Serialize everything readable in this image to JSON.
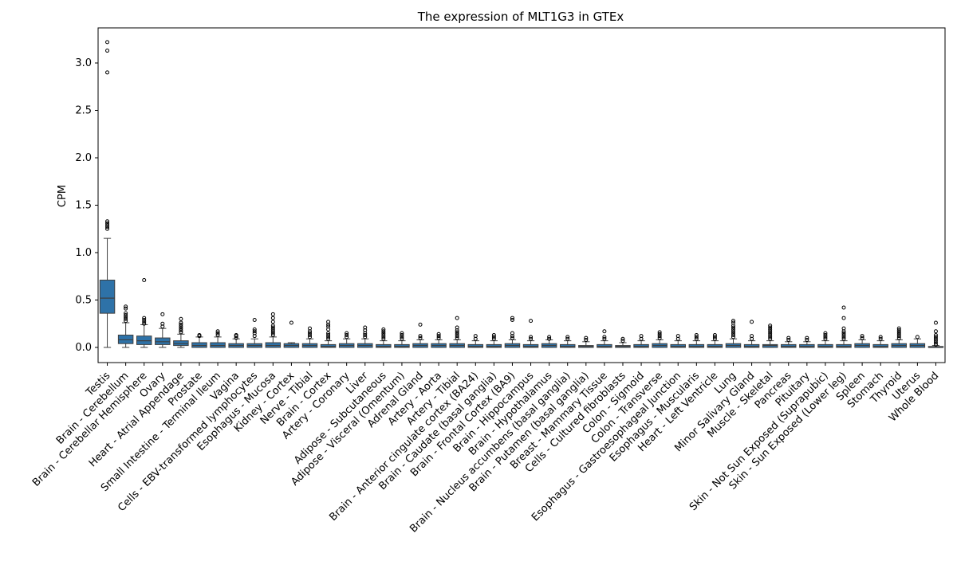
{
  "chart_data": {
    "type": "box",
    "title": "The expression of MLT1G3 in GTEx",
    "xlabel": "",
    "ylabel": "CPM",
    "ylim": [
      -0.16,
      3.37
    ],
    "yticks": [
      0.0,
      0.5,
      1.0,
      1.5,
      2.0,
      2.5,
      3.0
    ],
    "ytick_labels": [
      "0.0",
      "0.5",
      "1.0",
      "1.5",
      "2.0",
      "2.5",
      "3.0"
    ],
    "grid": false,
    "legend": "none",
    "box_color": "#2e72a8",
    "categories": [
      "Testis",
      "Brain - Cerebellum",
      "Brain - Cerebellar Hemisphere",
      "Ovary",
      "Heart - Atrial Appendage",
      "Prostate",
      "Small Intestine - Terminal Ileum",
      "Vagina",
      "Cells - EBV-transformed lymphocytes",
      "Esophagus - Mucosa",
      "Kidney - Cortex",
      "Nerve - Tibial",
      "Brain - Cortex",
      "Artery - Coronary",
      "Liver",
      "Adipose - Subcutaneous",
      "Adipose - Visceral (Omentum)",
      "Adrenal Gland",
      "Artery - Aorta",
      "Artery - Tibial",
      "Brain - Anterior cingulate cortex (BA24)",
      "Brain - Caudate (basal ganglia)",
      "Brain - Frontal Cortex (BA9)",
      "Brain - Hippocampus",
      "Brain - Hypothalamus",
      "Brain - Nucleus accumbens (basal ganglia)",
      "Brain - Putamen (basal ganglia)",
      "Breast - Mammary Tissue",
      "Cells - Cultured fibroblasts",
      "Colon - Sigmoid",
      "Colon - Transverse",
      "Esophagus - Gastroesophageal Junction",
      "Esophagus - Muscularis",
      "Heart - Left Ventricle",
      "Lung",
      "Minor Salivary Gland",
      "Muscle - Skeletal",
      "Pancreas",
      "Pituitary",
      "Skin - Not Sun Exposed (Suprapubic)",
      "Skin - Sun Exposed (Lower leg)",
      "Spleen",
      "Stomach",
      "Thyroid",
      "Uterus",
      "Whole Blood"
    ],
    "boxes": [
      {
        "q1": 0.36,
        "median": 0.52,
        "q3": 0.71,
        "whislo": 0.0,
        "whishi": 1.15,
        "fliers": [
          1.25,
          1.27,
          1.29,
          1.31,
          1.33,
          2.9,
          3.13,
          3.22
        ]
      },
      {
        "q1": 0.04,
        "median": 0.08,
        "q3": 0.13,
        "whislo": 0.0,
        "whishi": 0.26,
        "fliers": [
          0.28,
          0.3,
          0.32,
          0.34,
          0.36,
          0.41,
          0.43
        ]
      },
      {
        "q1": 0.03,
        "median": 0.07,
        "q3": 0.12,
        "whislo": 0.0,
        "whishi": 0.24,
        "fliers": [
          0.25,
          0.27,
          0.29,
          0.31,
          0.71
        ]
      },
      {
        "q1": 0.03,
        "median": 0.06,
        "q3": 0.1,
        "whislo": 0.0,
        "whishi": 0.2,
        "fliers": [
          0.22,
          0.25,
          0.35
        ]
      },
      {
        "q1": 0.02,
        "median": 0.04,
        "q3": 0.07,
        "whislo": 0.0,
        "whishi": 0.14,
        "fliers": [
          0.16,
          0.18,
          0.2,
          0.22,
          0.24,
          0.26,
          0.3
        ]
      },
      {
        "q1": 0.0,
        "median": 0.02,
        "q3": 0.05,
        "whislo": 0.0,
        "whishi": 0.11,
        "fliers": [
          0.12,
          0.13
        ]
      },
      {
        "q1": 0.0,
        "median": 0.02,
        "q3": 0.05,
        "whislo": 0.0,
        "whishi": 0.11,
        "fliers": [
          0.13,
          0.15,
          0.17
        ]
      },
      {
        "q1": 0.0,
        "median": 0.02,
        "q3": 0.04,
        "whislo": 0.0,
        "whishi": 0.09,
        "fliers": [
          0.1,
          0.12,
          0.13
        ]
      },
      {
        "q1": 0.0,
        "median": 0.02,
        "q3": 0.04,
        "whislo": 0.0,
        "whishi": 0.09,
        "fliers": [
          0.12,
          0.15,
          0.17,
          0.19,
          0.29
        ]
      },
      {
        "q1": 0.0,
        "median": 0.02,
        "q3": 0.05,
        "whislo": 0.0,
        "whishi": 0.11,
        "fliers": [
          0.13,
          0.15,
          0.17,
          0.19,
          0.21,
          0.23,
          0.27,
          0.31,
          0.35
        ]
      },
      {
        "q1": 0.0,
        "median": 0.02,
        "q3": 0.04,
        "whislo": 0.0,
        "whishi": 0.05,
        "fliers": [
          0.26
        ]
      },
      {
        "q1": 0.0,
        "median": 0.02,
        "q3": 0.04,
        "whislo": 0.0,
        "whishi": 0.09,
        "fliers": [
          0.11,
          0.13,
          0.15,
          0.17,
          0.2
        ]
      },
      {
        "q1": 0.0,
        "median": 0.01,
        "q3": 0.03,
        "whislo": 0.0,
        "whishi": 0.07,
        "fliers": [
          0.09,
          0.11,
          0.13,
          0.15,
          0.19,
          0.22,
          0.24,
          0.27
        ]
      },
      {
        "q1": 0.0,
        "median": 0.02,
        "q3": 0.04,
        "whislo": 0.0,
        "whishi": 0.09,
        "fliers": [
          0.11,
          0.13,
          0.15
        ]
      },
      {
        "q1": 0.0,
        "median": 0.02,
        "q3": 0.04,
        "whislo": 0.0,
        "whishi": 0.09,
        "fliers": [
          0.11,
          0.13,
          0.15,
          0.18,
          0.21
        ]
      },
      {
        "q1": 0.0,
        "median": 0.01,
        "q3": 0.03,
        "whislo": 0.0,
        "whishi": 0.07,
        "fliers": [
          0.09,
          0.11,
          0.13,
          0.15,
          0.17,
          0.19
        ]
      },
      {
        "q1": 0.0,
        "median": 0.01,
        "q3": 0.03,
        "whislo": 0.0,
        "whishi": 0.07,
        "fliers": [
          0.09,
          0.11,
          0.13,
          0.15
        ]
      },
      {
        "q1": 0.0,
        "median": 0.02,
        "q3": 0.04,
        "whislo": 0.0,
        "whishi": 0.08,
        "fliers": [
          0.1,
          0.12,
          0.24
        ]
      },
      {
        "q1": 0.0,
        "median": 0.02,
        "q3": 0.04,
        "whislo": 0.0,
        "whishi": 0.08,
        "fliers": [
          0.1,
          0.12,
          0.14
        ]
      },
      {
        "q1": 0.0,
        "median": 0.02,
        "q3": 0.04,
        "whislo": 0.0,
        "whishi": 0.08,
        "fliers": [
          0.1,
          0.12,
          0.14,
          0.16,
          0.18,
          0.21,
          0.31
        ]
      },
      {
        "q1": 0.0,
        "median": 0.01,
        "q3": 0.03,
        "whislo": 0.0,
        "whishi": 0.07,
        "fliers": [
          0.09,
          0.12
        ]
      },
      {
        "q1": 0.0,
        "median": 0.01,
        "q3": 0.03,
        "whislo": 0.0,
        "whishi": 0.07,
        "fliers": [
          0.09,
          0.11,
          0.13
        ]
      },
      {
        "q1": 0.0,
        "median": 0.02,
        "q3": 0.04,
        "whislo": 0.0,
        "whishi": 0.08,
        "fliers": [
          0.1,
          0.12,
          0.15,
          0.29,
          0.31
        ]
      },
      {
        "q1": 0.0,
        "median": 0.01,
        "q3": 0.03,
        "whislo": 0.0,
        "whishi": 0.07,
        "fliers": [
          0.09,
          0.11,
          0.28
        ]
      },
      {
        "q1": 0.0,
        "median": 0.02,
        "q3": 0.04,
        "whislo": 0.0,
        "whishi": 0.08,
        "fliers": [
          0.09,
          0.11
        ]
      },
      {
        "q1": 0.0,
        "median": 0.01,
        "q3": 0.03,
        "whislo": 0.0,
        "whishi": 0.07,
        "fliers": [
          0.09,
          0.11
        ]
      },
      {
        "q1": 0.0,
        "median": 0.01,
        "q3": 0.02,
        "whislo": 0.0,
        "whishi": 0.06,
        "fliers": [
          0.08,
          0.1
        ]
      },
      {
        "q1": 0.0,
        "median": 0.01,
        "q3": 0.03,
        "whislo": 0.0,
        "whishi": 0.07,
        "fliers": [
          0.09,
          0.11,
          0.17
        ]
      },
      {
        "q1": 0.0,
        "median": 0.01,
        "q3": 0.02,
        "whislo": 0.0,
        "whishi": 0.05,
        "fliers": [
          0.07,
          0.09
        ]
      },
      {
        "q1": 0.0,
        "median": 0.01,
        "q3": 0.03,
        "whislo": 0.0,
        "whishi": 0.07,
        "fliers": [
          0.09,
          0.12
        ]
      },
      {
        "q1": 0.0,
        "median": 0.02,
        "q3": 0.04,
        "whislo": 0.0,
        "whishi": 0.08,
        "fliers": [
          0.1,
          0.12,
          0.14,
          0.16
        ]
      },
      {
        "q1": 0.0,
        "median": 0.01,
        "q3": 0.03,
        "whislo": 0.0,
        "whishi": 0.07,
        "fliers": [
          0.09,
          0.12
        ]
      },
      {
        "q1": 0.0,
        "median": 0.01,
        "q3": 0.03,
        "whislo": 0.0,
        "whishi": 0.07,
        "fliers": [
          0.09,
          0.11,
          0.13
        ]
      },
      {
        "q1": 0.0,
        "median": 0.01,
        "q3": 0.03,
        "whislo": 0.0,
        "whishi": 0.07,
        "fliers": [
          0.09,
          0.11,
          0.13
        ]
      },
      {
        "q1": 0.0,
        "median": 0.02,
        "q3": 0.04,
        "whislo": 0.0,
        "whishi": 0.09,
        "fliers": [
          0.11,
          0.13,
          0.15,
          0.17,
          0.19,
          0.21,
          0.23,
          0.26,
          0.28
        ]
      },
      {
        "q1": 0.0,
        "median": 0.01,
        "q3": 0.03,
        "whislo": 0.0,
        "whishi": 0.07,
        "fliers": [
          0.09,
          0.12,
          0.27
        ]
      },
      {
        "q1": 0.0,
        "median": 0.02,
        "q3": 0.03,
        "whislo": 0.0,
        "whishi": 0.07,
        "fliers": [
          0.09,
          0.11,
          0.13,
          0.15,
          0.17,
          0.19,
          0.21,
          0.23
        ]
      },
      {
        "q1": 0.0,
        "median": 0.01,
        "q3": 0.03,
        "whislo": 0.0,
        "whishi": 0.06,
        "fliers": [
          0.08,
          0.1
        ]
      },
      {
        "q1": 0.0,
        "median": 0.01,
        "q3": 0.03,
        "whislo": 0.0,
        "whishi": 0.06,
        "fliers": [
          0.08,
          0.1
        ]
      },
      {
        "q1": 0.0,
        "median": 0.01,
        "q3": 0.03,
        "whislo": 0.0,
        "whishi": 0.07,
        "fliers": [
          0.09,
          0.11,
          0.13,
          0.15
        ]
      },
      {
        "q1": 0.0,
        "median": 0.01,
        "q3": 0.03,
        "whislo": 0.0,
        "whishi": 0.07,
        "fliers": [
          0.09,
          0.11,
          0.13,
          0.15,
          0.17,
          0.2,
          0.31,
          0.42
        ]
      },
      {
        "q1": 0.0,
        "median": 0.02,
        "q3": 0.04,
        "whislo": 0.0,
        "whishi": 0.08,
        "fliers": [
          0.1,
          0.12
        ]
      },
      {
        "q1": 0.0,
        "median": 0.01,
        "q3": 0.03,
        "whislo": 0.0,
        "whishi": 0.07,
        "fliers": [
          0.09,
          0.11
        ]
      },
      {
        "q1": 0.0,
        "median": 0.02,
        "q3": 0.04,
        "whislo": 0.0,
        "whishi": 0.08,
        "fliers": [
          0.1,
          0.12,
          0.14,
          0.16,
          0.18,
          0.2
        ]
      },
      {
        "q1": 0.0,
        "median": 0.02,
        "q3": 0.04,
        "whislo": 0.0,
        "whishi": 0.09,
        "fliers": [
          0.11
        ]
      },
      {
        "q1": 0.0,
        "median": 0.0,
        "q3": 0.01,
        "whislo": 0.0,
        "whishi": 0.02,
        "fliers": [
          0.03,
          0.05,
          0.07,
          0.09,
          0.11,
          0.13,
          0.17,
          0.26
        ]
      }
    ]
  }
}
